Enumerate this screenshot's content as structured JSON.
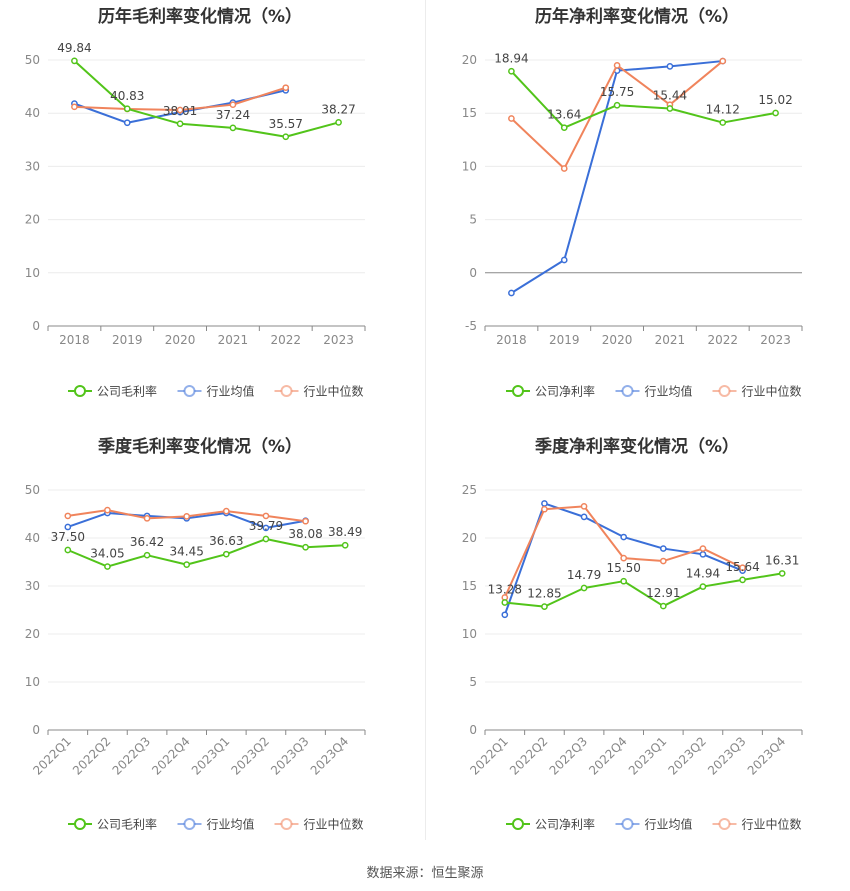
{
  "source": "数据来源：恒生聚源",
  "chart_data": [
    {
      "type": "line",
      "title": "历年毛利率变化情况（%）",
      "categories": [
        "2018",
        "2019",
        "2020",
        "2021",
        "2022",
        "2023"
      ],
      "yticks": [
        0,
        10,
        20,
        30,
        40,
        50
      ],
      "ylim": [
        0,
        55
      ],
      "series": [
        {
          "name": "公司毛利率",
          "color": "#52c41a",
          "values": [
            49.84,
            40.83,
            38.01,
            37.24,
            35.57,
            38.27
          ],
          "labels": [
            "49.84",
            "40.83",
            "38.01",
            "37.24",
            "35.57",
            "38.27"
          ]
        },
        {
          "name": "行业均值",
          "color": "#3a6fd8",
          "values": [
            41.8,
            38.2,
            40.2,
            42.0,
            44.3,
            null
          ]
        },
        {
          "name": "行业中位数",
          "color": "#f0845c",
          "values": [
            41.2,
            40.8,
            40.6,
            41.6,
            44.8,
            null
          ]
        }
      ]
    },
    {
      "type": "line",
      "title": "历年净利率变化情况（%）",
      "categories": [
        "2018",
        "2019",
        "2020",
        "2021",
        "2022",
        "2023"
      ],
      "yticks": [
        -5,
        0,
        5,
        10,
        15,
        20
      ],
      "ylim": [
        -5,
        22
      ],
      "series": [
        {
          "name": "公司净利率",
          "color": "#52c41a",
          "values": [
            18.94,
            13.64,
            15.75,
            15.44,
            14.12,
            15.02
          ],
          "labels": [
            "18.94",
            "13.64",
            "15.75",
            "15.44",
            "14.12",
            "15.02"
          ]
        },
        {
          "name": "行业均值",
          "color": "#3a6fd8",
          "values": [
            -1.9,
            1.2,
            19.0,
            19.4,
            19.9,
            null
          ]
        },
        {
          "name": "行业中位数",
          "color": "#f0845c",
          "values": [
            14.5,
            9.8,
            19.5,
            15.8,
            19.9,
            null
          ]
        }
      ]
    },
    {
      "type": "line",
      "title": "季度毛利率变化情况（%）",
      "categories": [
        "2022Q1",
        "2022Q2",
        "2022Q3",
        "2022Q4",
        "2023Q1",
        "2023Q2",
        "2023Q3",
        "2023Q4"
      ],
      "yticks": [
        0,
        10,
        20,
        30,
        40,
        50
      ],
      "ylim": [
        0,
        50
      ],
      "series": [
        {
          "name": "公司毛利率",
          "color": "#52c41a",
          "values": [
            37.5,
            34.05,
            36.42,
            34.45,
            36.63,
            39.79,
            38.08,
            38.49
          ],
          "labels": [
            "37.50",
            "34.05",
            "36.42",
            "34.45",
            "36.63",
            "39.79",
            "38.08",
            "38.49"
          ]
        },
        {
          "name": "行业均值",
          "color": "#3a6fd8",
          "values": [
            42.3,
            45.2,
            44.6,
            44.1,
            45.2,
            42.1,
            43.6,
            null
          ]
        },
        {
          "name": "行业中位数",
          "color": "#f0845c",
          "values": [
            44.6,
            45.8,
            44.1,
            44.5,
            45.6,
            44.6,
            43.5,
            null
          ]
        }
      ]
    },
    {
      "type": "line",
      "title": "季度净利率变化情况（%）",
      "categories": [
        "2022Q1",
        "2022Q2",
        "2022Q3",
        "2022Q4",
        "2023Q1",
        "2023Q2",
        "2023Q3",
        "2023Q4"
      ],
      "yticks": [
        0,
        5,
        10,
        15,
        20,
        25
      ],
      "ylim": [
        0,
        25
      ],
      "series": [
        {
          "name": "公司净利率",
          "color": "#52c41a",
          "values": [
            13.28,
            12.85,
            14.79,
            15.5,
            12.91,
            14.94,
            15.64,
            16.31
          ],
          "labels": [
            "13.28",
            "12.85",
            "14.79",
            "15.50",
            "12.91",
            "14.94",
            "15.64",
            "16.31"
          ]
        },
        {
          "name": "行业均值",
          "color": "#3a6fd8",
          "values": [
            12.0,
            23.6,
            22.2,
            20.1,
            18.9,
            18.3,
            16.6,
            null
          ]
        },
        {
          "name": "行业中位数",
          "color": "#f0845c",
          "values": [
            13.8,
            23.0,
            23.3,
            17.9,
            17.6,
            18.9,
            16.9,
            null
          ]
        }
      ]
    }
  ]
}
